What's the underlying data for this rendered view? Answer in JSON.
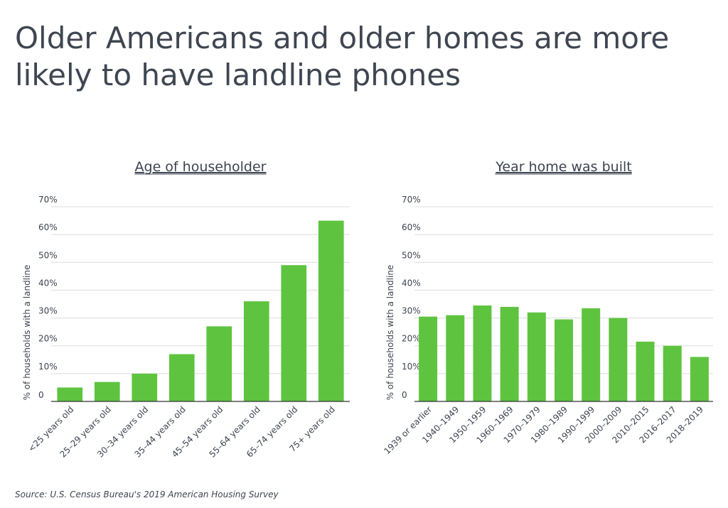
{
  "title": "Older Americans and older homes are more likely to have landline phones",
  "source": "Source: U.S. Census Bureau's 2019 American Housing Survey",
  "colors": {
    "bar": "#5ec43f",
    "grid": "#dcdcdc",
    "axis": "#333333",
    "text": "#3d4450"
  },
  "chart_data": [
    {
      "type": "bar",
      "title": "Age of householder",
      "ylabel": "% of households with a landline",
      "ylim": [
        0,
        70
      ],
      "yticks": [
        "0",
        "10%",
        "20%",
        "30%",
        "40%",
        "50%",
        "60%",
        "70%"
      ],
      "grid": true,
      "categories": [
        "<25 years old",
        "25–29 years old",
        "30–34 years old",
        "35–44 years old",
        "45–54 years old",
        "55–64 years old",
        "65–74 years old",
        "75+ years old"
      ],
      "values": [
        5,
        7,
        10,
        17,
        27,
        36,
        49,
        65
      ]
    },
    {
      "type": "bar",
      "title": "Year home was built",
      "ylabel": "% of households with a landline",
      "ylim": [
        0,
        70
      ],
      "yticks": [
        "0",
        "10%",
        "20%",
        "30%",
        "40%",
        "50%",
        "60%",
        "70%"
      ],
      "grid": true,
      "categories": [
        "1939 or earlier",
        "1940–1949",
        "1950–1959",
        "1960–1969",
        "1970–1979",
        "1980–1989",
        "1990–1999",
        "2000–2009",
        "2010–2015",
        "2016–2017",
        "2018–2019"
      ],
      "values": [
        30.5,
        31,
        34.5,
        34,
        32,
        29.5,
        33.5,
        30,
        21.5,
        20,
        16
      ]
    }
  ]
}
